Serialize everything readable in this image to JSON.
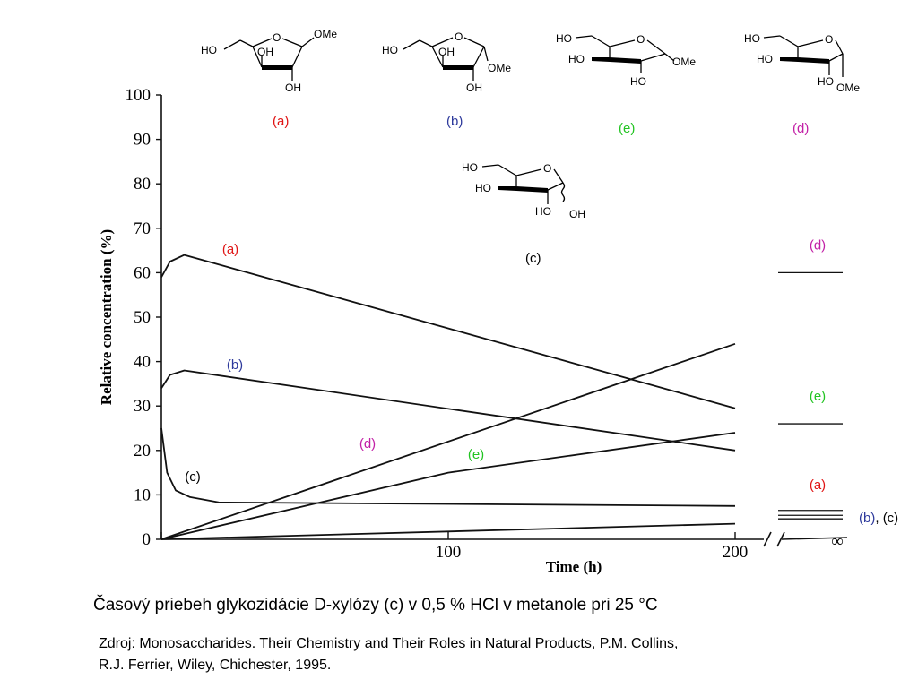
{
  "colors": {
    "a": "#e01414",
    "b": "#2e3a9c",
    "c": "#000000",
    "d": "#c21fa6",
    "e": "#22c422",
    "curve": "#111111"
  },
  "structures": {
    "a": {
      "label": "(a)",
      "texts": [
        "HO",
        "OH",
        "O",
        "OMe",
        "OH"
      ]
    },
    "b": {
      "label": "(b)",
      "texts": [
        "HO",
        "OH",
        "O",
        "OMe",
        "OH"
      ]
    },
    "e": {
      "label": "(e)",
      "texts": [
        "HO",
        "O",
        "HO",
        "OMe",
        "HO"
      ]
    },
    "d": {
      "label": "(d)",
      "texts": [
        "HO",
        "O",
        "HO",
        "HO",
        "OMe"
      ]
    },
    "c": {
      "label": "(c)",
      "texts": [
        "HO",
        "O",
        "HO",
        "HO",
        "OH"
      ]
    }
  },
  "chart_data": {
    "type": "line",
    "title": "",
    "xlabel": "Time (h)",
    "ylabel": "Relative concentration (%)",
    "xlim": [
      0,
      200
    ],
    "ylim": [
      0,
      100
    ],
    "x_ticks": [
      0,
      100,
      200
    ],
    "x_tick_labels": [
      "",
      "100",
      "200"
    ],
    "y_ticks": [
      0,
      10,
      20,
      30,
      40,
      50,
      60,
      70,
      80,
      90,
      100
    ],
    "infinity_label": "∞",
    "series": [
      {
        "key": "a",
        "label": "(a)",
        "x": [
          0,
          3,
          8,
          200
        ],
        "y": [
          59,
          62.5,
          64,
          29.5
        ]
      },
      {
        "key": "b",
        "label": "(b)",
        "x": [
          0,
          3,
          8,
          200
        ],
        "y": [
          34,
          37,
          38,
          20
        ]
      },
      {
        "key": "c",
        "label": "(c)",
        "x": [
          0,
          2,
          5,
          10,
          20,
          200
        ],
        "y": [
          25,
          15,
          11,
          9.5,
          8.3,
          7.5
        ]
      },
      {
        "key": "d",
        "label": "(d)",
        "x": [
          0,
          200
        ],
        "y": [
          0,
          44
        ]
      },
      {
        "key": "e",
        "label": "(e)",
        "x": [
          0,
          100,
          200
        ],
        "y": [
          0,
          15,
          24
        ]
      },
      {
        "key": "bottom",
        "label": "",
        "x": [
          0,
          200
        ],
        "y": [
          0,
          3.5
        ]
      }
    ],
    "equilibrium": [
      {
        "key": "d",
        "label": "(d)",
        "y": 60
      },
      {
        "key": "e",
        "label": "(e)",
        "y": 26
      },
      {
        "key": "a",
        "label": "(a)",
        "y": 6.5
      },
      {
        "key": "b",
        "label": "(b)",
        "y": 5.4
      },
      {
        "key": "c",
        "label": "(c)",
        "y": 4.6
      }
    ],
    "equilibrium_group_labels": [
      {
        "key": "b",
        "label": "(b)"
      },
      {
        "key": "sep",
        "label": ", "
      },
      {
        "key": "c",
        "label": "(c)"
      }
    ]
  },
  "caption": "Časový priebeh glykozidácie D-xylózy (c) v 0,5 % HCl v metanole pri 25 °C",
  "source_lines": [
    "Zdroj: Monosaccharides. Their Chemistry and Their Roles in Natural Products, P.M. Collins,",
    "R.J. Ferrier, Wiley, Chichester, 1995."
  ]
}
